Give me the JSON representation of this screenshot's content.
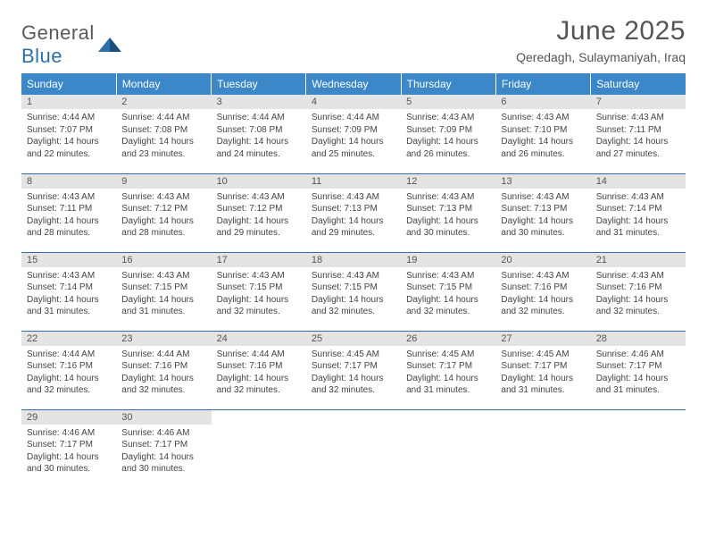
{
  "brand": {
    "word1": "General",
    "word2": "Blue"
  },
  "title": "June 2025",
  "location": "Qeredagh, Sulaymaniyah, Iraq",
  "colors": {
    "header_bg": "#3b87c8",
    "header_text": "#ffffff",
    "row_divider": "#2f6fa7",
    "daynum_bg": "#e4e4e4",
    "text": "#444444",
    "title_text": "#555555"
  },
  "weekdays": [
    "Sunday",
    "Monday",
    "Tuesday",
    "Wednesday",
    "Thursday",
    "Friday",
    "Saturday"
  ],
  "days": [
    {
      "n": "1",
      "sr": "4:44 AM",
      "ss": "7:07 PM",
      "dl": "14 hours and 22 minutes."
    },
    {
      "n": "2",
      "sr": "4:44 AM",
      "ss": "7:08 PM",
      "dl": "14 hours and 23 minutes."
    },
    {
      "n": "3",
      "sr": "4:44 AM",
      "ss": "7:08 PM",
      "dl": "14 hours and 24 minutes."
    },
    {
      "n": "4",
      "sr": "4:44 AM",
      "ss": "7:09 PM",
      "dl": "14 hours and 25 minutes."
    },
    {
      "n": "5",
      "sr": "4:43 AM",
      "ss": "7:09 PM",
      "dl": "14 hours and 26 minutes."
    },
    {
      "n": "6",
      "sr": "4:43 AM",
      "ss": "7:10 PM",
      "dl": "14 hours and 26 minutes."
    },
    {
      "n": "7",
      "sr": "4:43 AM",
      "ss": "7:11 PM",
      "dl": "14 hours and 27 minutes."
    },
    {
      "n": "8",
      "sr": "4:43 AM",
      "ss": "7:11 PM",
      "dl": "14 hours and 28 minutes."
    },
    {
      "n": "9",
      "sr": "4:43 AM",
      "ss": "7:12 PM",
      "dl": "14 hours and 28 minutes."
    },
    {
      "n": "10",
      "sr": "4:43 AM",
      "ss": "7:12 PM",
      "dl": "14 hours and 29 minutes."
    },
    {
      "n": "11",
      "sr": "4:43 AM",
      "ss": "7:13 PM",
      "dl": "14 hours and 29 minutes."
    },
    {
      "n": "12",
      "sr": "4:43 AM",
      "ss": "7:13 PM",
      "dl": "14 hours and 30 minutes."
    },
    {
      "n": "13",
      "sr": "4:43 AM",
      "ss": "7:13 PM",
      "dl": "14 hours and 30 minutes."
    },
    {
      "n": "14",
      "sr": "4:43 AM",
      "ss": "7:14 PM",
      "dl": "14 hours and 31 minutes."
    },
    {
      "n": "15",
      "sr": "4:43 AM",
      "ss": "7:14 PM",
      "dl": "14 hours and 31 minutes."
    },
    {
      "n": "16",
      "sr": "4:43 AM",
      "ss": "7:15 PM",
      "dl": "14 hours and 31 minutes."
    },
    {
      "n": "17",
      "sr": "4:43 AM",
      "ss": "7:15 PM",
      "dl": "14 hours and 32 minutes."
    },
    {
      "n": "18",
      "sr": "4:43 AM",
      "ss": "7:15 PM",
      "dl": "14 hours and 32 minutes."
    },
    {
      "n": "19",
      "sr": "4:43 AM",
      "ss": "7:15 PM",
      "dl": "14 hours and 32 minutes."
    },
    {
      "n": "20",
      "sr": "4:43 AM",
      "ss": "7:16 PM",
      "dl": "14 hours and 32 minutes."
    },
    {
      "n": "21",
      "sr": "4:43 AM",
      "ss": "7:16 PM",
      "dl": "14 hours and 32 minutes."
    },
    {
      "n": "22",
      "sr": "4:44 AM",
      "ss": "7:16 PM",
      "dl": "14 hours and 32 minutes."
    },
    {
      "n": "23",
      "sr": "4:44 AM",
      "ss": "7:16 PM",
      "dl": "14 hours and 32 minutes."
    },
    {
      "n": "24",
      "sr": "4:44 AM",
      "ss": "7:16 PM",
      "dl": "14 hours and 32 minutes."
    },
    {
      "n": "25",
      "sr": "4:45 AM",
      "ss": "7:17 PM",
      "dl": "14 hours and 32 minutes."
    },
    {
      "n": "26",
      "sr": "4:45 AM",
      "ss": "7:17 PM",
      "dl": "14 hours and 31 minutes."
    },
    {
      "n": "27",
      "sr": "4:45 AM",
      "ss": "7:17 PM",
      "dl": "14 hours and 31 minutes."
    },
    {
      "n": "28",
      "sr": "4:46 AM",
      "ss": "7:17 PM",
      "dl": "14 hours and 31 minutes."
    },
    {
      "n": "29",
      "sr": "4:46 AM",
      "ss": "7:17 PM",
      "dl": "14 hours and 30 minutes."
    },
    {
      "n": "30",
      "sr": "4:46 AM",
      "ss": "7:17 PM",
      "dl": "14 hours and 30 minutes."
    }
  ],
  "labels": {
    "sunrise": "Sunrise:",
    "sunset": "Sunset:",
    "daylight": "Daylight:"
  }
}
